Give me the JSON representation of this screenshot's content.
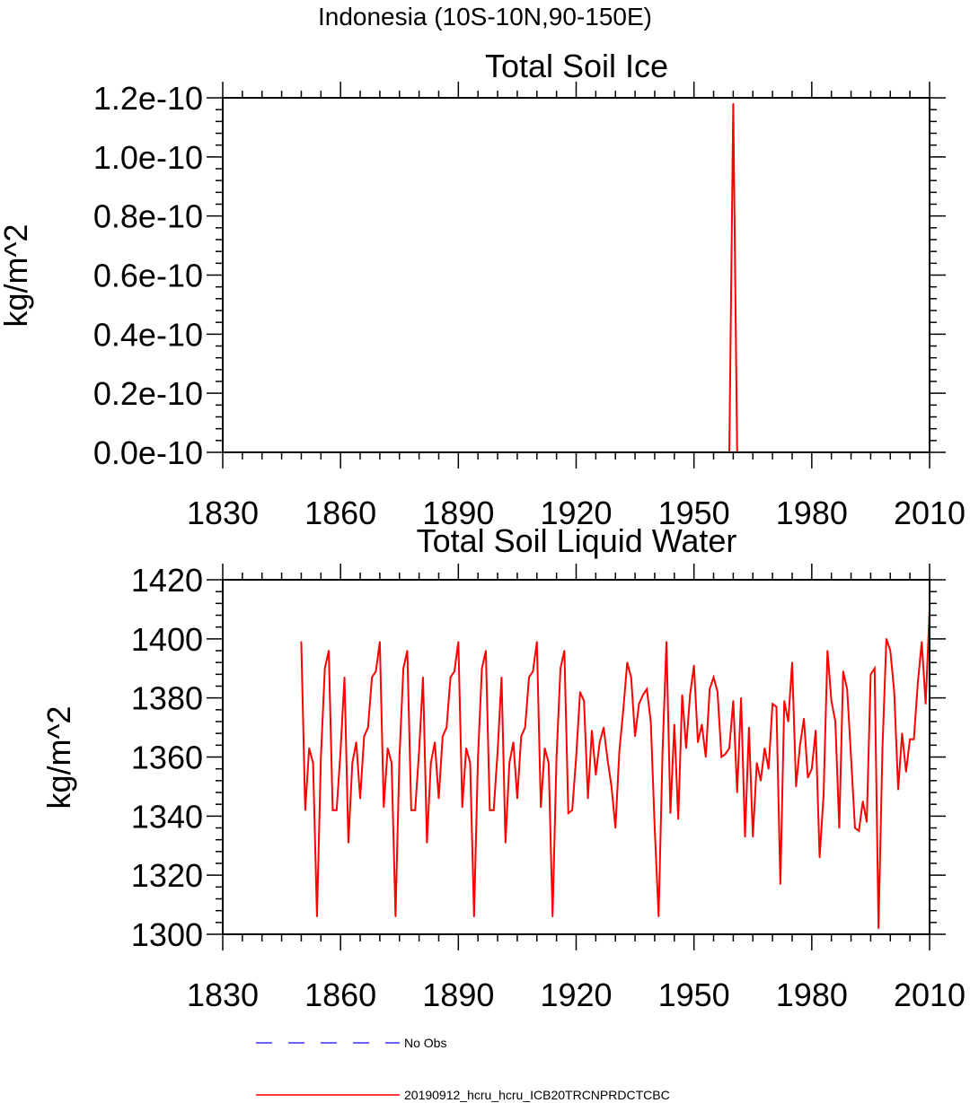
{
  "suptitle": "Indonesia (10S-10N,90-150E)",
  "colors": {
    "model": "#ff0000",
    "obs": "#3333ff",
    "axis": "#000000"
  },
  "legend": {
    "entries": [
      {
        "label": "No Obs",
        "style": "dashed",
        "color": "#3333ff"
      },
      {
        "label": "20190912_hcru_hcru_ICB20TRCNPRDCTCBC",
        "style": "solid",
        "color": "#ff0000"
      }
    ]
  },
  "chart_data": [
    {
      "type": "line",
      "title": "Total Soil Ice",
      "xlabel": "",
      "ylabel": "kg/m^2",
      "xlim": [
        1830,
        2010
      ],
      "ylim": [
        0,
        1.2e-10
      ],
      "xticks": [
        1830,
        1860,
        1890,
        1920,
        1950,
        1980,
        2010
      ],
      "xtick_labels": [
        "1830",
        "1860",
        "1890",
        "1920",
        "1950",
        "1980",
        "2010"
      ],
      "yticks": [
        0,
        2e-11,
        4e-11,
        6e-11,
        8e-11,
        1e-10,
        1.2e-10
      ],
      "ytick_labels": [
        "0.0e-10",
        "0.2e-10",
        "0.4e-10",
        "0.6e-10",
        "0.8e-10",
        "1.0e-10",
        "1.2e-10"
      ],
      "series": [
        {
          "name": "20190912_hcru_hcru_ICB20TRCNPRDCTCBC",
          "x": [
            1850,
            1958,
            1959,
            1960,
            1961,
            2010
          ],
          "values": [
            0,
            0,
            0,
            1.18e-10,
            0,
            0
          ]
        }
      ]
    },
    {
      "type": "line",
      "title": "Total Soil Liquid Water",
      "xlabel": "",
      "ylabel": "kg/m^2",
      "xlim": [
        1830,
        2010
      ],
      "ylim": [
        1300,
        1420
      ],
      "xticks": [
        1830,
        1860,
        1890,
        1920,
        1950,
        1980,
        2010
      ],
      "xtick_labels": [
        "1830",
        "1860",
        "1890",
        "1920",
        "1950",
        "1980",
        "2010"
      ],
      "yticks": [
        1300,
        1320,
        1340,
        1360,
        1380,
        1400,
        1420
      ],
      "ytick_labels": [
        "1300",
        "1320",
        "1340",
        "1360",
        "1380",
        "1400",
        "1420"
      ],
      "series": [
        {
          "name": "20190912_hcru_hcru_ICB20TRCNPRDCTCBC",
          "x_start": 1850,
          "x_step": 1,
          "values": [
            1399,
            1342,
            1363,
            1358,
            1306,
            1360,
            1390,
            1396,
            1342,
            1342,
            1362,
            1387,
            1331,
            1358,
            1365,
            1346,
            1367,
            1370,
            1387,
            1389,
            1399,
            1343,
            1363,
            1358,
            1306,
            1360,
            1390,
            1396,
            1342,
            1342,
            1362,
            1387,
            1331,
            1358,
            1365,
            1346,
            1367,
            1370,
            1387,
            1389,
            1399,
            1343,
            1363,
            1358,
            1306,
            1360,
            1390,
            1396,
            1342,
            1342,
            1362,
            1387,
            1331,
            1358,
            1365,
            1346,
            1367,
            1370,
            1387,
            1389,
            1399,
            1343,
            1363,
            1358,
            1306,
            1360,
            1390,
            1396,
            1341,
            1342,
            1360,
            1382,
            1379,
            1346,
            1369,
            1354,
            1365,
            1370,
            1359,
            1350,
            1336,
            1362,
            1376,
            1392,
            1387,
            1367,
            1378,
            1381,
            1383,
            1372,
            1336,
            1306,
            1362,
            1399,
            1341,
            1371,
            1339,
            1381,
            1363,
            1381,
            1391,
            1365,
            1371,
            1360,
            1383,
            1387,
            1382,
            1360,
            1361,
            1363,
            1379,
            1348,
            1380,
            1333,
            1370,
            1333,
            1358,
            1352,
            1363,
            1356,
            1378,
            1377,
            1317,
            1379,
            1372,
            1392,
            1350,
            1364,
            1373,
            1353,
            1356,
            1369,
            1326,
            1347,
            1396,
            1379,
            1372,
            1336,
            1389,
            1383,
            1360,
            1336,
            1335,
            1345,
            1338,
            1388,
            1390,
            1302,
            1363,
            1400,
            1396,
            1382,
            1349,
            1368,
            1355,
            1366,
            1366,
            1385,
            1399,
            1378,
            1410
          ]
        }
      ]
    }
  ]
}
